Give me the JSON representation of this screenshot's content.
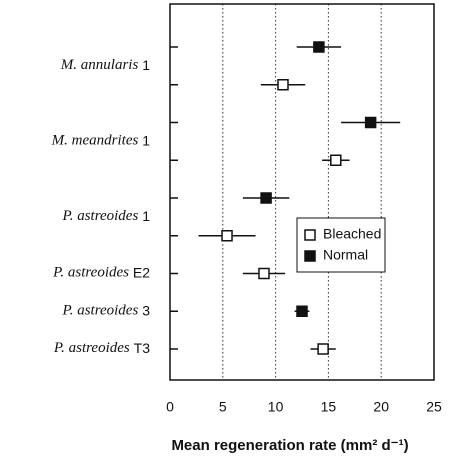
{
  "chart_data": {
    "type": "dot",
    "categories": [
      {
        "name": "M. annularis",
        "code": "1"
      },
      {
        "name": "M. meandrites",
        "code": "1"
      },
      {
        "name": "P. astreoides",
        "code": "1"
      },
      {
        "name": "P. astreoides",
        "code": "E2"
      },
      {
        "name": "P. astreoides",
        "code": "3"
      },
      {
        "name": "P. astreoides",
        "code": "T3"
      }
    ],
    "series": [
      {
        "name": "Normal",
        "color": "#111111",
        "filled": true,
        "values": [
          14.1,
          19.0,
          9.1,
          null,
          12.5,
          null
        ],
        "errors": [
          2.1,
          2.8,
          2.2,
          null,
          0.7,
          null
        ]
      },
      {
        "name": "Bleached",
        "color": "#111111",
        "filled": false,
        "values": [
          10.7,
          15.7,
          5.4,
          8.9,
          null,
          14.5
        ],
        "errors": [
          2.1,
          1.3,
          2.7,
          2.0,
          null,
          1.2
        ]
      }
    ],
    "x_label": "Mean regeneration rate (mm² d⁻¹)",
    "xlim": [
      0,
      25
    ],
    "xticks": [
      0,
      5,
      10,
      15,
      20,
      25
    ],
    "grid": true,
    "legend": "right"
  }
}
